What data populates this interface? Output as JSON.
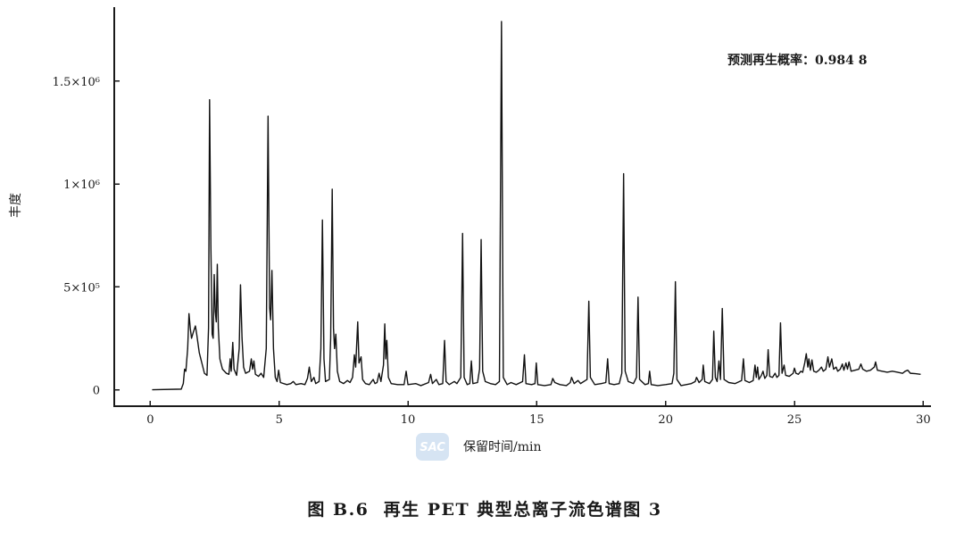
{
  "chart_data": {
    "type": "line",
    "caption": "图 B.6  再生 PET 典型总离子流色谱图 3",
    "xlabel": "保留时间/min",
    "ylabel": "丰度",
    "annotation": "预测再生概率：0.984 8",
    "xlim": [
      -1.4,
      30.3
    ],
    "ylim": [
      -80000,
      1860000
    ],
    "xticks": [
      0,
      5,
      10,
      15,
      20,
      25,
      30
    ],
    "xtick_labels": [
      "0",
      "5",
      "10",
      "15",
      "20",
      "25",
      "30"
    ],
    "yticks": [
      0,
      500000,
      1000000,
      1500000
    ],
    "ytick_labels": [
      "0",
      "5×10⁵",
      "1×10⁶",
      "1.5×10⁶"
    ],
    "grid": false,
    "legend": "none",
    "series": [
      {
        "color": "#111111",
        "points": [
          [
            0.07,
            0
          ],
          [
            1.2,
            3000
          ],
          [
            1.28,
            30000
          ],
          [
            1.33,
            100000
          ],
          [
            1.38,
            90000
          ],
          [
            1.45,
            200000
          ],
          [
            1.5,
            370000
          ],
          [
            1.55,
            300000
          ],
          [
            1.6,
            250000
          ],
          [
            1.67,
            280000
          ],
          [
            1.75,
            310000
          ],
          [
            1.8,
            270000
          ],
          [
            1.9,
            180000
          ],
          [
            2.0,
            130000
          ],
          [
            2.1,
            80000
          ],
          [
            2.2,
            70000
          ],
          [
            2.26,
            300000
          ],
          [
            2.3,
            1410000
          ],
          [
            2.35,
            700000
          ],
          [
            2.4,
            270000
          ],
          [
            2.44,
            250000
          ],
          [
            2.48,
            560000
          ],
          [
            2.52,
            380000
          ],
          [
            2.56,
            330000
          ],
          [
            2.6,
            610000
          ],
          [
            2.64,
            300000
          ],
          [
            2.7,
            150000
          ],
          [
            2.8,
            100000
          ],
          [
            2.95,
            80000
          ],
          [
            3.05,
            75000
          ],
          [
            3.1,
            150000
          ],
          [
            3.14,
            90000
          ],
          [
            3.2,
            230000
          ],
          [
            3.25,
            100000
          ],
          [
            3.35,
            70000
          ],
          [
            3.45,
            200000
          ],
          [
            3.5,
            510000
          ],
          [
            3.56,
            250000
          ],
          [
            3.62,
            110000
          ],
          [
            3.7,
            80000
          ],
          [
            3.85,
            90000
          ],
          [
            3.92,
            150000
          ],
          [
            3.97,
            100000
          ],
          [
            4.02,
            140000
          ],
          [
            4.08,
            75000
          ],
          [
            4.2,
            65000
          ],
          [
            4.3,
            80000
          ],
          [
            4.4,
            60000
          ],
          [
            4.5,
            200000
          ],
          [
            4.57,
            1330000
          ],
          [
            4.63,
            400000
          ],
          [
            4.67,
            340000
          ],
          [
            4.72,
            580000
          ],
          [
            4.78,
            200000
          ],
          [
            4.85,
            60000
          ],
          [
            4.92,
            40000
          ],
          [
            4.98,
            95000
          ],
          [
            5.05,
            35000
          ],
          [
            5.3,
            25000
          ],
          [
            5.45,
            30000
          ],
          [
            5.55,
            40000
          ],
          [
            5.65,
            25000
          ],
          [
            5.85,
            30000
          ],
          [
            6.0,
            25000
          ],
          [
            6.1,
            55000
          ],
          [
            6.17,
            110000
          ],
          [
            6.25,
            40000
          ],
          [
            6.35,
            60000
          ],
          [
            6.42,
            30000
          ],
          [
            6.55,
            40000
          ],
          [
            6.62,
            200000
          ],
          [
            6.68,
            825000
          ],
          [
            6.74,
            150000
          ],
          [
            6.8,
            40000
          ],
          [
            6.95,
            50000
          ],
          [
            7.0,
            250000
          ],
          [
            7.06,
            975000
          ],
          [
            7.11,
            300000
          ],
          [
            7.15,
            200000
          ],
          [
            7.2,
            270000
          ],
          [
            7.26,
            90000
          ],
          [
            7.35,
            40000
          ],
          [
            7.5,
            30000
          ],
          [
            7.65,
            45000
          ],
          [
            7.75,
            35000
          ],
          [
            7.85,
            60000
          ],
          [
            7.92,
            170000
          ],
          [
            7.97,
            110000
          ],
          [
            8.05,
            330000
          ],
          [
            8.1,
            130000
          ],
          [
            8.18,
            160000
          ],
          [
            8.24,
            50000
          ],
          [
            8.35,
            30000
          ],
          [
            8.5,
            25000
          ],
          [
            8.65,
            50000
          ],
          [
            8.72,
            30000
          ],
          [
            8.8,
            35000
          ],
          [
            8.88,
            80000
          ],
          [
            8.95,
            40000
          ],
          [
            9.05,
            120000
          ],
          [
            9.1,
            320000
          ],
          [
            9.14,
            150000
          ],
          [
            9.18,
            240000
          ],
          [
            9.24,
            60000
          ],
          [
            9.35,
            30000
          ],
          [
            9.6,
            25000
          ],
          [
            9.85,
            25000
          ],
          [
            9.93,
            90000
          ],
          [
            10.0,
            25000
          ],
          [
            10.3,
            30000
          ],
          [
            10.5,
            20000
          ],
          [
            10.8,
            35000
          ],
          [
            10.88,
            75000
          ],
          [
            10.95,
            30000
          ],
          [
            11.1,
            50000
          ],
          [
            11.2,
            25000
          ],
          [
            11.35,
            30000
          ],
          [
            11.42,
            240000
          ],
          [
            11.48,
            40000
          ],
          [
            11.6,
            25000
          ],
          [
            11.8,
            40000
          ],
          [
            11.9,
            30000
          ],
          [
            12.05,
            60000
          ],
          [
            12.12,
            760000
          ],
          [
            12.18,
            60000
          ],
          [
            12.3,
            25000
          ],
          [
            12.4,
            30000
          ],
          [
            12.46,
            140000
          ],
          [
            12.52,
            30000
          ],
          [
            12.7,
            35000
          ],
          [
            12.78,
            100000
          ],
          [
            12.84,
            730000
          ],
          [
            12.9,
            90000
          ],
          [
            13.0,
            40000
          ],
          [
            13.2,
            30000
          ],
          [
            13.4,
            25000
          ],
          [
            13.55,
            40000
          ],
          [
            13.63,
            1790000
          ],
          [
            13.7,
            60000
          ],
          [
            13.85,
            25000
          ],
          [
            14.0,
            35000
          ],
          [
            14.2,
            25000
          ],
          [
            14.45,
            40000
          ],
          [
            14.52,
            170000
          ],
          [
            14.58,
            30000
          ],
          [
            14.8,
            25000
          ],
          [
            14.93,
            30000
          ],
          [
            14.98,
            130000
          ],
          [
            15.04,
            25000
          ],
          [
            15.3,
            20000
          ],
          [
            15.55,
            25000
          ],
          [
            15.62,
            55000
          ],
          [
            15.7,
            35000
          ],
          [
            15.9,
            25000
          ],
          [
            16.15,
            20000
          ],
          [
            16.3,
            35000
          ],
          [
            16.35,
            60000
          ],
          [
            16.45,
            30000
          ],
          [
            16.6,
            45000
          ],
          [
            16.7,
            30000
          ],
          [
            16.95,
            50000
          ],
          [
            17.02,
            430000
          ],
          [
            17.08,
            60000
          ],
          [
            17.25,
            25000
          ],
          [
            17.5,
            30000
          ],
          [
            17.68,
            35000
          ],
          [
            17.75,
            150000
          ],
          [
            17.81,
            30000
          ],
          [
            18.0,
            25000
          ],
          [
            18.2,
            30000
          ],
          [
            18.3,
            80000
          ],
          [
            18.37,
            1050000
          ],
          [
            18.43,
            90000
          ],
          [
            18.55,
            40000
          ],
          [
            18.75,
            30000
          ],
          [
            18.87,
            60000
          ],
          [
            18.93,
            450000
          ],
          [
            18.99,
            50000
          ],
          [
            19.2,
            25000
          ],
          [
            19.33,
            30000
          ],
          [
            19.38,
            90000
          ],
          [
            19.44,
            25000
          ],
          [
            19.7,
            20000
          ],
          [
            20.0,
            25000
          ],
          [
            20.25,
            30000
          ],
          [
            20.32,
            80000
          ],
          [
            20.38,
            525000
          ],
          [
            20.44,
            50000
          ],
          [
            20.6,
            20000
          ],
          [
            20.8,
            25000
          ],
          [
            21.0,
            30000
          ],
          [
            21.15,
            40000
          ],
          [
            21.2,
            60000
          ],
          [
            21.3,
            35000
          ],
          [
            21.42,
            50000
          ],
          [
            21.46,
            120000
          ],
          [
            21.52,
            40000
          ],
          [
            21.7,
            30000
          ],
          [
            21.82,
            50000
          ],
          [
            21.87,
            285000
          ],
          [
            21.93,
            60000
          ],
          [
            22.0,
            40000
          ],
          [
            22.07,
            140000
          ],
          [
            22.13,
            50000
          ],
          [
            22.2,
            395000
          ],
          [
            22.27,
            50000
          ],
          [
            22.45,
            35000
          ],
          [
            22.7,
            30000
          ],
          [
            22.95,
            45000
          ],
          [
            23.02,
            150000
          ],
          [
            23.08,
            45000
          ],
          [
            23.25,
            35000
          ],
          [
            23.4,
            45000
          ],
          [
            23.47,
            120000
          ],
          [
            23.52,
            60000
          ],
          [
            23.57,
            110000
          ],
          [
            23.62,
            50000
          ],
          [
            23.72,
            70000
          ],
          [
            23.78,
            90000
          ],
          [
            23.85,
            55000
          ],
          [
            23.93,
            70000
          ],
          [
            23.98,
            195000
          ],
          [
            24.04,
            65000
          ],
          [
            24.15,
            60000
          ],
          [
            24.25,
            80000
          ],
          [
            24.32,
            60000
          ],
          [
            24.4,
            70000
          ],
          [
            24.46,
            325000
          ],
          [
            24.52,
            80000
          ],
          [
            24.6,
            120000
          ],
          [
            24.66,
            70000
          ],
          [
            24.8,
            65000
          ],
          [
            24.95,
            80000
          ],
          [
            25.0,
            105000
          ],
          [
            25.06,
            80000
          ],
          [
            25.15,
            75000
          ],
          [
            25.25,
            90000
          ],
          [
            25.32,
            85000
          ],
          [
            25.4,
            130000
          ],
          [
            25.46,
            175000
          ],
          [
            25.52,
            110000
          ],
          [
            25.56,
            150000
          ],
          [
            25.62,
            95000
          ],
          [
            25.68,
            145000
          ],
          [
            25.75,
            90000
          ],
          [
            25.85,
            85000
          ],
          [
            25.95,
            95000
          ],
          [
            26.05,
            110000
          ],
          [
            26.12,
            90000
          ],
          [
            26.22,
            100000
          ],
          [
            26.3,
            160000
          ],
          [
            26.36,
            110000
          ],
          [
            26.45,
            150000
          ],
          [
            26.52,
            100000
          ],
          [
            26.62,
            110000
          ],
          [
            26.68,
            90000
          ],
          [
            26.78,
            100000
          ],
          [
            26.86,
            125000
          ],
          [
            26.92,
            95000
          ],
          [
            27.0,
            130000
          ],
          [
            27.06,
            100000
          ],
          [
            27.12,
            135000
          ],
          [
            27.2,
            90000
          ],
          [
            27.35,
            95000
          ],
          [
            27.5,
            100000
          ],
          [
            27.58,
            125000
          ],
          [
            27.65,
            100000
          ],
          [
            27.8,
            90000
          ],
          [
            27.95,
            95000
          ],
          [
            28.1,
            110000
          ],
          [
            28.15,
            135000
          ],
          [
            28.22,
            95000
          ],
          [
            28.4,
            90000
          ],
          [
            28.6,
            85000
          ],
          [
            28.8,
            90000
          ],
          [
            29.0,
            85000
          ],
          [
            29.2,
            80000
          ],
          [
            29.3,
            90000
          ],
          [
            29.4,
            95000
          ],
          [
            29.5,
            80000
          ],
          [
            29.7,
            78000
          ],
          [
            29.9,
            75000
          ]
        ]
      }
    ]
  },
  "watermark": {
    "logo_text": "SAC",
    "color": "#cfe0f2"
  },
  "colors": {
    "axis": "#1a1a1a",
    "trace": "#111111",
    "text": "#1a1a1a"
  }
}
